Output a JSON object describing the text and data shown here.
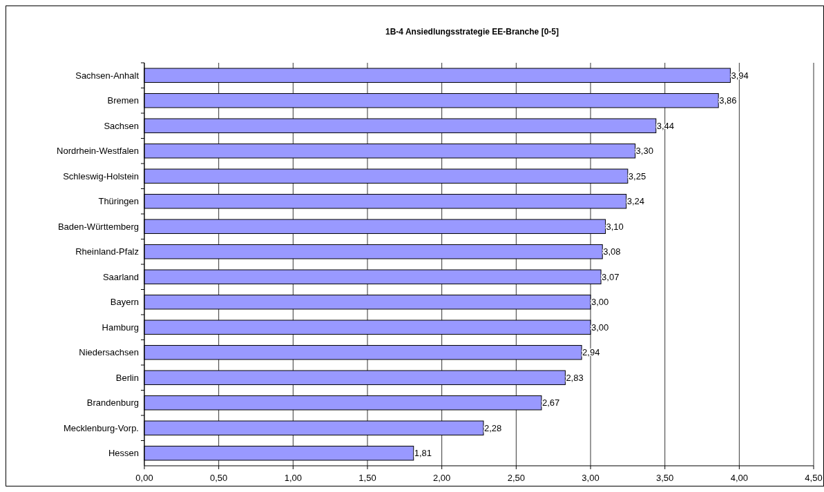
{
  "chart_data": {
    "type": "bar",
    "orientation": "horizontal",
    "title": "1B-4 Ansiedlungsstrategie EE-Branche [0-5]",
    "categories": [
      "Sachsen-Anhalt",
      "Bremen",
      "Sachsen",
      "Nordrhein-Westfalen",
      "Schleswig-Holstein",
      "Thüringen",
      "Baden-Württemberg",
      "Rheinland-Pfalz",
      "Saarland",
      "Bayern",
      "Hamburg",
      "Niedersachsen",
      "Berlin",
      "Brandenburg",
      "Mecklenburg-Vorp.",
      "Hessen"
    ],
    "values": [
      3.94,
      3.86,
      3.44,
      3.3,
      3.25,
      3.24,
      3.1,
      3.08,
      3.07,
      3.0,
      3.0,
      2.94,
      2.83,
      2.67,
      2.28,
      1.81
    ],
    "value_labels": [
      "3,94",
      "3,86",
      "3,44",
      "3,30",
      "3,25",
      "3,24",
      "3,10",
      "3,08",
      "3,07",
      "3,00",
      "3,00",
      "2,94",
      "2,83",
      "2,67",
      "2,28",
      "1,81"
    ],
    "color": "#9999ff",
    "xlim": [
      0,
      4.5
    ],
    "xticks": [
      {
        "value": 0,
        "label": "0,00"
      },
      {
        "value": 0.5,
        "label": "0,50"
      },
      {
        "value": 1,
        "label": "1,00"
      },
      {
        "value": 1.5,
        "label": "1,50"
      },
      {
        "value": 2,
        "label": "2,00"
      },
      {
        "value": 2.5,
        "label": "2,50"
      },
      {
        "value": 3,
        "label": "3,00"
      },
      {
        "value": 3.5,
        "label": "3,50"
      },
      {
        "value": 4,
        "label": "4,00"
      },
      {
        "value": 4.5,
        "label": "4,50"
      }
    ],
    "grid": "x"
  }
}
